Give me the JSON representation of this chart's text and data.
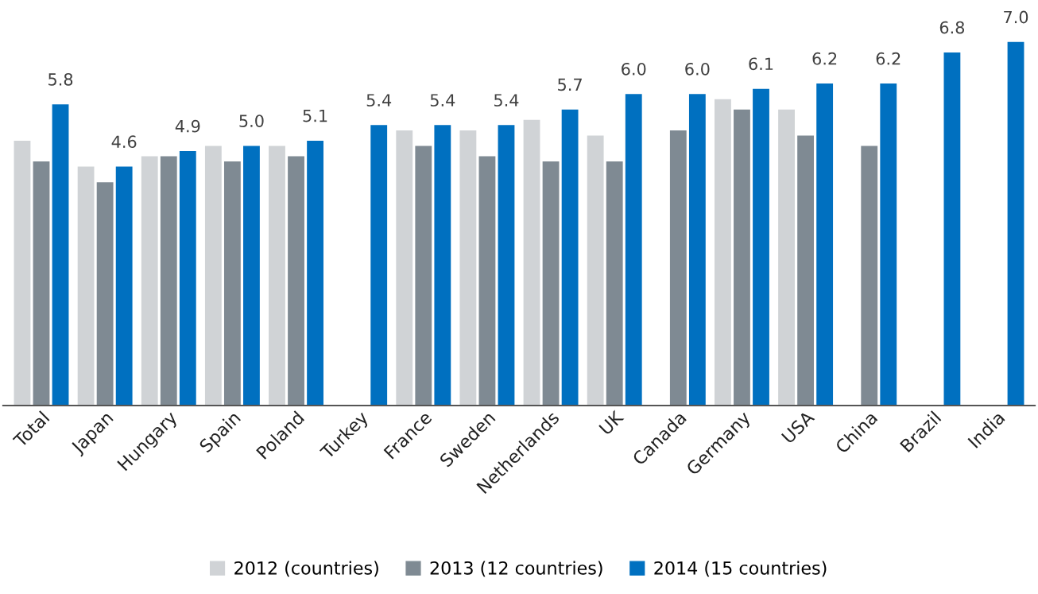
{
  "chart_data": {
    "type": "bar",
    "categories": [
      "Total",
      "Japan",
      "Hungary",
      "Spain",
      "Poland",
      "Turkey",
      "France",
      "Sweden",
      "Netherlands",
      "UK",
      "Canada",
      "Germany",
      "USA",
      "China",
      "Brazil",
      "India"
    ],
    "series": [
      {
        "name": "2012 (countries)",
        "color": "#d0d3d6",
        "values": [
          5.1,
          4.6,
          4.8,
          5.0,
          5.0,
          null,
          5.3,
          5.3,
          5.5,
          5.2,
          null,
          5.9,
          5.7,
          null,
          null,
          null
        ]
      },
      {
        "name": "2013 (12 countries)",
        "color": "#7f8a93",
        "values": [
          4.7,
          4.3,
          4.8,
          4.7,
          4.8,
          null,
          5.0,
          4.8,
          4.7,
          4.7,
          5.3,
          5.7,
          5.2,
          5.0,
          null,
          null
        ]
      },
      {
        "name": "2014 (15 countries)",
        "color": "#0070c0",
        "values": [
          5.8,
          4.6,
          4.9,
          5.0,
          5.1,
          5.4,
          5.4,
          5.4,
          5.7,
          6.0,
          6.0,
          6.1,
          6.2,
          6.2,
          6.8,
          7.0
        ],
        "value_labels": [
          "5.8",
          "4.6",
          "4.9",
          "5.0",
          "5.1",
          "5.4",
          "5.4",
          "5.4",
          "5.7",
          "6.0",
          "6.0",
          "6.1",
          "6.2",
          "6.2",
          "6.8",
          "7.0"
        ]
      }
    ],
    "tick_labels": "x",
    "legend": "bottom",
    "grid": false
  }
}
